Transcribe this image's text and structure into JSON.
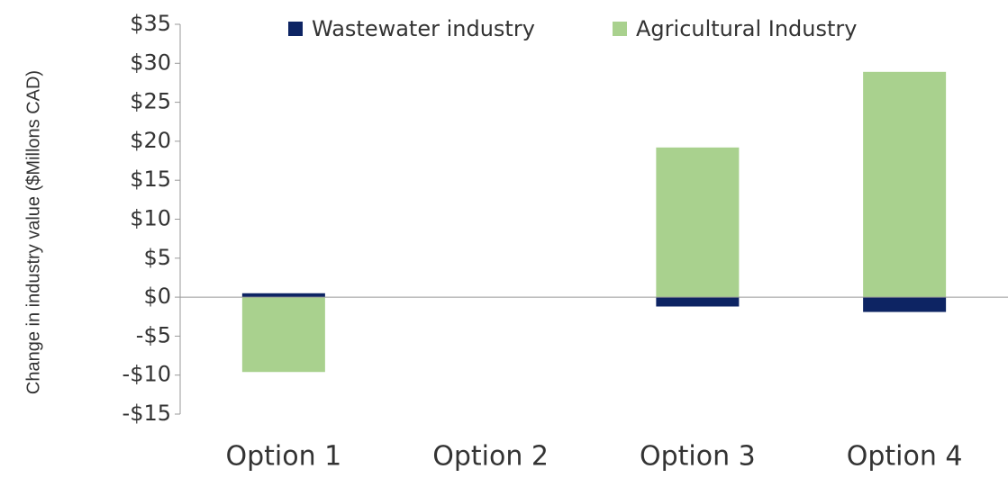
{
  "chart_data": {
    "type": "stacked_bar",
    "y_label": "Change in industry value ($Millons CAD)",
    "categories": [
      "Option 1",
      "Option 2",
      "Option 3",
      "Option 4"
    ],
    "series": [
      {
        "name": "Wastewater industry",
        "color": "#0d2463",
        "values": [
          0.5,
          0,
          -1.2,
          -1.9
        ]
      },
      {
        "name": "Agricultural Industry",
        "color": "#a9d18e",
        "values": [
          -9.6,
          0,
          19.2,
          28.9
        ]
      }
    ],
    "ylim": [
      -15,
      35
    ],
    "yticks": [
      {
        "value": -15,
        "label": "-$15"
      },
      {
        "value": -10,
        "label": "-$10"
      },
      {
        "value": -5,
        "label": "-$5"
      },
      {
        "value": 0,
        "label": "$0"
      },
      {
        "value": 5,
        "label": "$5"
      },
      {
        "value": 10,
        "label": "$10"
      },
      {
        "value": 15,
        "label": "$15"
      },
      {
        "value": 20,
        "label": "$20"
      },
      {
        "value": 25,
        "label": "$25"
      },
      {
        "value": 30,
        "label": "$30"
      },
      {
        "value": 35,
        "label": "$35"
      }
    ],
    "legend": "top"
  }
}
